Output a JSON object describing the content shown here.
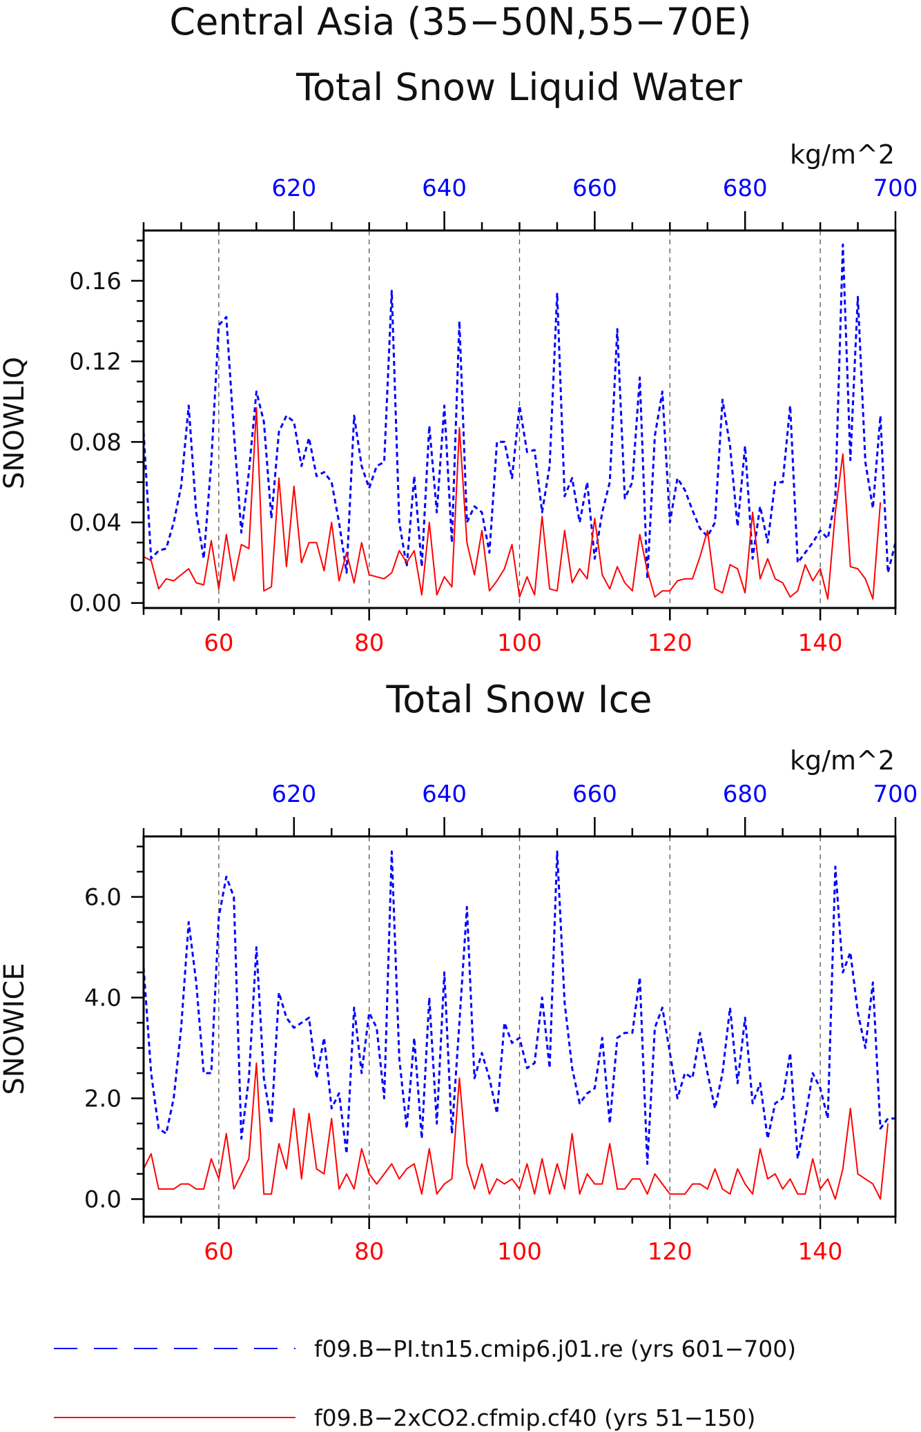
{
  "figure": {
    "title_line1": "Central Asia (35-50N,55-70E)",
    "title_line2": "Total Snow Liquid Water",
    "title_panel2": "Total Snow Ice"
  },
  "colors": {
    "series_pi": "#0000ff",
    "series_2xco2": "#ff0000",
    "axes": "#000000",
    "grid": "#555555"
  },
  "legend": {
    "placement": "bottom",
    "entries": [
      {
        "label": "f09.B-PI.tn15.cmip6.j01.re (yrs 601-700)",
        "color": "#0000ff",
        "style": "dashed"
      },
      {
        "label": "f09.B-2xCO2.cfmip.cf40 (yrs 51-150)",
        "color": "#ff0000",
        "style": "solid"
      }
    ]
  },
  "chart_data": [
    {
      "type": "line",
      "title": "Total Snow Liquid Water",
      "units": "kg/m^2",
      "ylabel": "SNOWLIQ",
      "ylim": [
        -0.0025,
        0.185
      ],
      "yticks": [
        "0.00",
        "0.04",
        "0.08",
        "0.12",
        "0.16"
      ],
      "bottom_axis": {
        "color": "#ff0000",
        "lim": [
          50,
          150
        ],
        "ticks": [
          "60",
          "80",
          "100",
          "120",
          "140"
        ]
      },
      "top_axis": {
        "color": "#0000ff",
        "lim": [
          600,
          700
        ],
        "ticks": [
          "620",
          "640",
          "660",
          "680",
          "700"
        ]
      },
      "grid": "vertical dashed at major ticks",
      "series": [
        {
          "name": "f09.B-PI.tn15.cmip6.j01.re (yrs 601-700)",
          "color": "#0000ff",
          "style": "dashed",
          "axis": "top",
          "x_start": 600,
          "y": [
            0.085,
            0.022,
            0.026,
            0.027,
            0.04,
            0.058,
            0.098,
            0.045,
            0.022,
            0.07,
            0.138,
            0.142,
            0.085,
            0.035,
            0.065,
            0.105,
            0.09,
            0.042,
            0.085,
            0.093,
            0.09,
            0.068,
            0.082,
            0.063,
            0.065,
            0.06,
            0.04,
            0.015,
            0.093,
            0.068,
            0.057,
            0.068,
            0.07,
            0.155,
            0.04,
            0.018,
            0.063,
            0.018,
            0.088,
            0.045,
            0.098,
            0.03,
            0.14,
            0.04,
            0.048,
            0.045,
            0.025,
            0.08,
            0.08,
            0.062,
            0.098,
            0.075,
            0.076,
            0.045,
            0.068,
            0.154,
            0.053,
            0.062,
            0.04,
            0.06,
            0.022,
            0.045,
            0.06,
            0.136,
            0.052,
            0.06,
            0.112,
            0.012,
            0.083,
            0.105,
            0.04,
            0.062,
            0.056,
            0.046,
            0.037,
            0.033,
            0.04,
            0.101,
            0.078,
            0.038,
            0.078,
            0.022,
            0.048,
            0.03,
            0.06,
            0.06,
            0.098,
            0.02,
            0.025,
            0.03,
            0.036,
            0.032,
            0.052,
            0.178,
            0.071,
            0.152,
            0.07,
            0.047,
            0.093,
            0.015,
            0.03
          ]
        },
        {
          "name": "f09.B-2xCO2.cfmip.cf40 (yrs 51-150)",
          "color": "#ff0000",
          "style": "solid",
          "axis": "bottom",
          "x_start": 50,
          "y": [
            0.023,
            0.021,
            0.007,
            0.012,
            0.011,
            0.014,
            0.017,
            0.01,
            0.009,
            0.031,
            0.007,
            0.034,
            0.011,
            0.029,
            0.027,
            0.097,
            0.006,
            0.008,
            0.062,
            0.018,
            0.058,
            0.02,
            0.03,
            0.03,
            0.016,
            0.04,
            0.011,
            0.025,
            0.01,
            0.03,
            0.014,
            0.013,
            0.012,
            0.015,
            0.026,
            0.02,
            0.026,
            0.004,
            0.04,
            0.004,
            0.013,
            0.008,
            0.087,
            0.03,
            0.014,
            0.036,
            0.006,
            0.011,
            0.017,
            0.029,
            0.003,
            0.013,
            0.004,
            0.043,
            0.007,
            0.006,
            0.036,
            0.01,
            0.017,
            0.012,
            0.042,
            0.014,
            0.007,
            0.018,
            0.01,
            0.006,
            0.034,
            0.016,
            0.003,
            0.006,
            0.006,
            0.011,
            0.012,
            0.012,
            0.023,
            0.036,
            0.007,
            0.005,
            0.019,
            0.017,
            0.005,
            0.045,
            0.012,
            0.022,
            0.012,
            0.01,
            0.003,
            0.006,
            0.019,
            0.011,
            0.017,
            0.002,
            0.045,
            0.074,
            0.018,
            0.017,
            0.012,
            0.002,
            0.05
          ]
        }
      ]
    },
    {
      "type": "line",
      "title": "Total Snow Ice",
      "units": "kg/m^2",
      "ylabel": "SNOWICE",
      "ylim": [
        -0.35,
        7.2
      ],
      "yticks": [
        "0.0",
        "2.0",
        "4.0",
        "6.0"
      ],
      "bottom_axis": {
        "color": "#ff0000",
        "lim": [
          50,
          150
        ],
        "ticks": [
          "60",
          "80",
          "100",
          "120",
          "140"
        ]
      },
      "top_axis": {
        "color": "#0000ff",
        "lim": [
          600,
          700
        ],
        "ticks": [
          "620",
          "640",
          "660",
          "680",
          "700"
        ]
      },
      "grid": "vertical dashed at major ticks",
      "series": [
        {
          "name": "f09.B-PI.tn15.cmip6.j01.re (yrs 601-700)",
          "color": "#0000ff",
          "style": "dashed",
          "axis": "top",
          "x_start": 600,
          "y": [
            4.6,
            2.5,
            1.4,
            1.3,
            2.0,
            3.4,
            5.5,
            4.3,
            2.5,
            2.5,
            5.6,
            6.4,
            6.0,
            1.2,
            2.4,
            5.0,
            2.4,
            1.5,
            4.1,
            3.6,
            3.4,
            3.5,
            3.6,
            2.4,
            3.2,
            1.8,
            2.1,
            0.9,
            3.8,
            2.5,
            3.7,
            3.4,
            2.0,
            6.9,
            2.8,
            1.4,
            3.2,
            1.2,
            4.0,
            1.5,
            4.5,
            1.3,
            3.5,
            5.8,
            2.4,
            2.9,
            2.4,
            1.7,
            3.5,
            3.1,
            3.2,
            2.6,
            2.7,
            4.0,
            2.6,
            6.9,
            3.9,
            2.6,
            1.9,
            2.1,
            2.2,
            3.2,
            1.5,
            3.2,
            3.3,
            3.3,
            4.4,
            0.7,
            3.4,
            3.8,
            2.9,
            2.0,
            2.5,
            2.4,
            3.3,
            2.5,
            1.8,
            2.5,
            3.8,
            2.3,
            3.6,
            1.9,
            2.3,
            1.2,
            1.9,
            2.0,
            2.9,
            0.8,
            1.6,
            2.5,
            2.2,
            1.6,
            6.6,
            4.5,
            4.9,
            3.7,
            3.0,
            4.3,
            1.4,
            1.6,
            1.6
          ]
        },
        {
          "name": "f09.B-2xCO2.cfmip.cf40 (yrs 51-150)",
          "color": "#ff0000",
          "style": "solid",
          "axis": "bottom",
          "x_start": 50,
          "y": [
            0.6,
            0.9,
            0.2,
            0.2,
            0.2,
            0.3,
            0.3,
            0.2,
            0.2,
            0.8,
            0.4,
            1.3,
            0.2,
            0.5,
            0.8,
            2.7,
            0.1,
            0.1,
            1.1,
            0.6,
            1.8,
            0.4,
            1.7,
            0.6,
            0.5,
            1.6,
            0.2,
            0.5,
            0.2,
            1.0,
            0.5,
            0.3,
            0.5,
            0.7,
            0.4,
            0.6,
            0.7,
            0.1,
            1.0,
            0.1,
            0.3,
            0.4,
            2.4,
            0.7,
            0.2,
            0.7,
            0.1,
            0.4,
            0.3,
            0.4,
            0.2,
            0.7,
            0.1,
            0.8,
            0.1,
            0.7,
            0.2,
            1.3,
            0.1,
            0.5,
            0.3,
            0.3,
            1.1,
            0.2,
            0.2,
            0.4,
            0.4,
            0.1,
            0.5,
            0.3,
            0.1,
            0.1,
            0.1,
            0.3,
            0.3,
            0.2,
            0.6,
            0.2,
            0.1,
            0.6,
            0.3,
            0.1,
            1.0,
            0.4,
            0.5,
            0.2,
            0.4,
            0.1,
            0.1,
            0.8,
            0.2,
            0.4,
            0.0,
            0.6,
            1.8,
            0.5,
            0.4,
            0.3,
            0.0,
            1.5
          ]
        }
      ]
    }
  ]
}
